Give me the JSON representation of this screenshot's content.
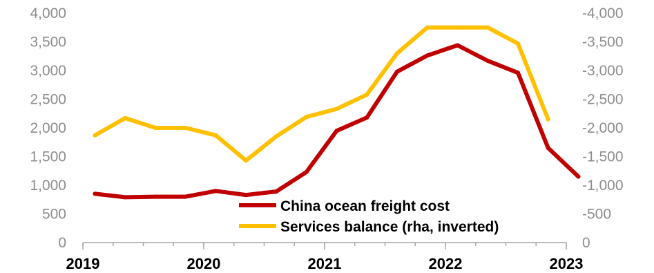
{
  "chart_data": {
    "type": "line",
    "x_ticks": [
      "2019",
      "2020",
      "2021",
      "2022",
      "2023"
    ],
    "y_left_ticks": [
      "0",
      "500",
      "1,000",
      "1,500",
      "2,000",
      "2,500",
      "3,000",
      "3,500",
      "4,000"
    ],
    "y_right_ticks": [
      "0",
      "-500",
      "-1,000",
      "-1,500",
      "-2,000",
      "-2,500",
      "-3,000",
      "-3,500",
      "-4,000"
    ],
    "ylim_left": [
      0,
      4000
    ],
    "ylim_right": [
      0,
      -4000
    ],
    "xlim": [
      2019,
      2023
    ],
    "grid": false,
    "legend_position": "bottom-center",
    "series": [
      {
        "name": "China ocean freight cost",
        "axis": "left",
        "color": "#c00000",
        "x": [
          2019.1,
          2019.35,
          2019.6,
          2019.85,
          2020.1,
          2020.35,
          2020.6,
          2020.85,
          2021.1,
          2021.35,
          2021.6,
          2021.85,
          2022.1,
          2022.35,
          2022.6,
          2022.85,
          2023.1
        ],
        "values": [
          850,
          790,
          800,
          800,
          900,
          830,
          890,
          1230,
          1950,
          2180,
          2980,
          3260,
          3440,
          3170,
          2960,
          1650,
          1150
        ]
      },
      {
        "name": "Services balance (rha, inverted)",
        "axis": "right",
        "color": "#ffc000",
        "x": [
          2019.1,
          2019.35,
          2019.6,
          2019.85,
          2020.1,
          2020.35,
          2020.6,
          2020.85,
          2021.1,
          2021.35,
          2021.6,
          2021.85,
          2022.1,
          2022.35,
          2022.6,
          2022.85
        ],
        "values": [
          -1870,
          -2170,
          -2000,
          -2000,
          -1870,
          -1430,
          -1850,
          -2190,
          -2330,
          -2580,
          -3300,
          -3750,
          -3750,
          -3750,
          -3470,
          -2150
        ]
      }
    ]
  }
}
